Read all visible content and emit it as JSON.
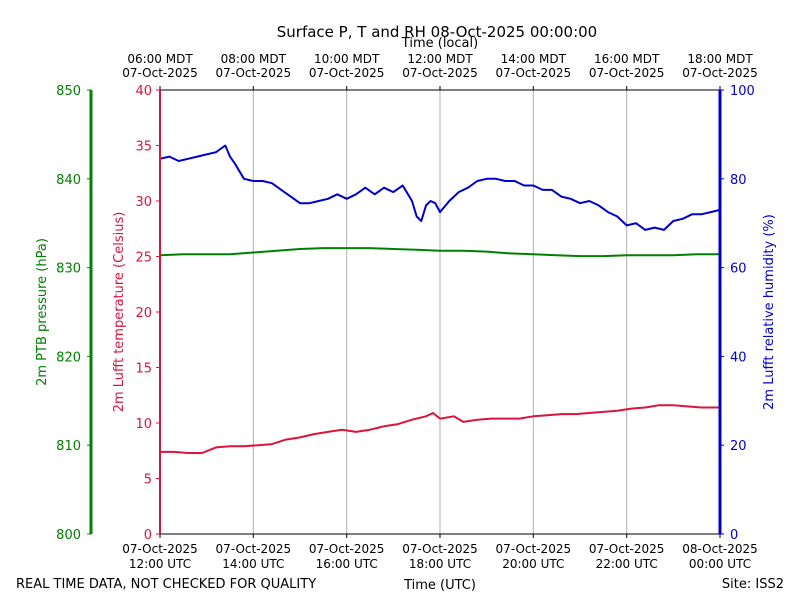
{
  "chart_data": {
    "type": "line",
    "title": "Surface P, T and RH 08-Oct-2025 00:00:00",
    "xlabel_bottom": "Time (UTC)",
    "xlabel_top": "Time (local)",
    "x_range_hours_utc": [
      12,
      24
    ],
    "bottom_ticks": [
      {
        "hour": 12,
        "line1": "07-Oct-2025",
        "line2": "12:00 UTC"
      },
      {
        "hour": 14,
        "line1": "07-Oct-2025",
        "line2": "14:00 UTC"
      },
      {
        "hour": 16,
        "line1": "07-Oct-2025",
        "line2": "16:00 UTC"
      },
      {
        "hour": 18,
        "line1": "07-Oct-2025",
        "line2": "18:00 UTC"
      },
      {
        "hour": 20,
        "line1": "07-Oct-2025",
        "line2": "20:00 UTC"
      },
      {
        "hour": 22,
        "line1": "07-Oct-2025",
        "line2": "22:00 UTC"
      },
      {
        "hour": 24,
        "line1": "08-Oct-2025",
        "line2": "00:00 UTC"
      }
    ],
    "top_ticks": [
      {
        "hour": 12,
        "line1": "06:00 MDT",
        "line2": "07-Oct-2025"
      },
      {
        "hour": 14,
        "line1": "08:00 MDT",
        "line2": "07-Oct-2025"
      },
      {
        "hour": 16,
        "line1": "10:00 MDT",
        "line2": "07-Oct-2025"
      },
      {
        "hour": 18,
        "line1": "12:00 MDT",
        "line2": "07-Oct-2025"
      },
      {
        "hour": 20,
        "line1": "14:00 MDT",
        "line2": "07-Oct-2025"
      },
      {
        "hour": 22,
        "line1": "16:00 MDT",
        "line2": "07-Oct-2025"
      },
      {
        "hour": 24,
        "line1": "18:00 MDT",
        "line2": "07-Oct-2025"
      }
    ],
    "axes": {
      "pressure": {
        "label": "2m PTB pressure (hPa)",
        "ylim": [
          800,
          850
        ],
        "ticks": [
          800,
          810,
          820,
          830,
          840,
          850
        ],
        "color": "#008000"
      },
      "temperature": {
        "label": "2m Lufft temperature (Celsius)",
        "ylim": [
          0,
          40
        ],
        "ticks": [
          0,
          5,
          10,
          15,
          20,
          25,
          30,
          35,
          40
        ],
        "color": "#dc143c"
      },
      "humidity": {
        "label": "2m Lufft relative humidity (%)",
        "ylim": [
          0,
          100
        ],
        "ticks": [
          0,
          20,
          40,
          60,
          80,
          100
        ],
        "color": "#0000cd"
      }
    },
    "series": [
      {
        "name": "2m PTB pressure (hPa)",
        "axis": "pressure",
        "color": "#008000",
        "x": [
          12.0,
          12.5,
          13.0,
          13.5,
          14.0,
          14.5,
          15.0,
          15.5,
          16.0,
          16.5,
          17.0,
          17.5,
          18.0,
          18.5,
          19.0,
          19.5,
          20.0,
          20.5,
          21.0,
          21.5,
          22.0,
          22.5,
          23.0,
          23.5,
          24.0
        ],
        "values": [
          831.4,
          831.5,
          831.5,
          831.5,
          831.7,
          831.9,
          832.1,
          832.2,
          832.2,
          832.2,
          832.1,
          832.0,
          831.9,
          831.9,
          831.8,
          831.6,
          831.5,
          831.4,
          831.3,
          831.3,
          831.4,
          831.4,
          831.4,
          831.5,
          831.5
        ]
      },
      {
        "name": "2m Lufft temperature (Celsius)",
        "axis": "temperature",
        "color": "#dc143c",
        "x": [
          12.0,
          12.3,
          12.6,
          12.9,
          13.2,
          13.5,
          13.8,
          14.1,
          14.4,
          14.7,
          15.0,
          15.3,
          15.6,
          15.9,
          16.2,
          16.5,
          16.8,
          17.1,
          17.4,
          17.7,
          17.85,
          18.0,
          18.3,
          18.5,
          18.8,
          19.1,
          19.4,
          19.7,
          20.0,
          20.3,
          20.6,
          20.9,
          21.2,
          21.5,
          21.8,
          22.1,
          22.4,
          22.7,
          23.0,
          23.3,
          23.6,
          24.0
        ],
        "values": [
          7.4,
          7.4,
          7.3,
          7.3,
          7.8,
          7.9,
          7.9,
          8.0,
          8.1,
          8.5,
          8.7,
          9.0,
          9.2,
          9.4,
          9.2,
          9.4,
          9.7,
          9.9,
          10.3,
          10.6,
          10.9,
          10.4,
          10.6,
          10.1,
          10.3,
          10.4,
          10.4,
          10.4,
          10.6,
          10.7,
          10.8,
          10.8,
          10.9,
          11.0,
          11.1,
          11.3,
          11.4,
          11.6,
          11.6,
          11.5,
          11.4,
          11.4
        ]
      },
      {
        "name": "2m Lufft relative humidity (%)",
        "axis": "humidity",
        "color": "#0000cd",
        "x": [
          12.0,
          12.2,
          12.4,
          12.6,
          12.8,
          13.0,
          13.2,
          13.4,
          13.5,
          13.6,
          13.8,
          14.0,
          14.2,
          14.4,
          14.6,
          14.8,
          15.0,
          15.2,
          15.4,
          15.6,
          15.8,
          16.0,
          16.2,
          16.4,
          16.6,
          16.8,
          17.0,
          17.2,
          17.4,
          17.5,
          17.6,
          17.7,
          17.8,
          17.9,
          18.0,
          18.2,
          18.4,
          18.6,
          18.8,
          19.0,
          19.2,
          19.4,
          19.6,
          19.8,
          20.0,
          20.2,
          20.4,
          20.6,
          20.8,
          21.0,
          21.2,
          21.4,
          21.6,
          21.8,
          22.0,
          22.2,
          22.4,
          22.6,
          22.8,
          23.0,
          23.2,
          23.4,
          23.6,
          23.8,
          24.0
        ],
        "values": [
          84.5,
          85.0,
          84.0,
          84.5,
          85.0,
          85.5,
          86.0,
          87.5,
          85.0,
          83.5,
          80.0,
          79.5,
          79.5,
          79.0,
          77.5,
          76.0,
          74.5,
          74.5,
          75.0,
          75.5,
          76.5,
          75.5,
          76.5,
          78.0,
          76.5,
          78.0,
          77.0,
          78.5,
          75.0,
          71.5,
          70.5,
          74.0,
          75.0,
          74.5,
          72.5,
          75.0,
          77.0,
          78.0,
          79.5,
          80.0,
          80.0,
          79.5,
          79.5,
          78.5,
          78.5,
          77.5,
          77.5,
          76.0,
          75.5,
          74.5,
          75.0,
          74.0,
          72.5,
          71.5,
          69.5,
          70.0,
          68.5,
          69.0,
          68.5,
          70.5,
          71.0,
          72.0,
          72.0,
          72.5,
          73.0
        ]
      }
    ]
  },
  "footer": {
    "left": "REAL TIME DATA, NOT CHECKED FOR QUALITY",
    "right": "Site: ISS2"
  }
}
